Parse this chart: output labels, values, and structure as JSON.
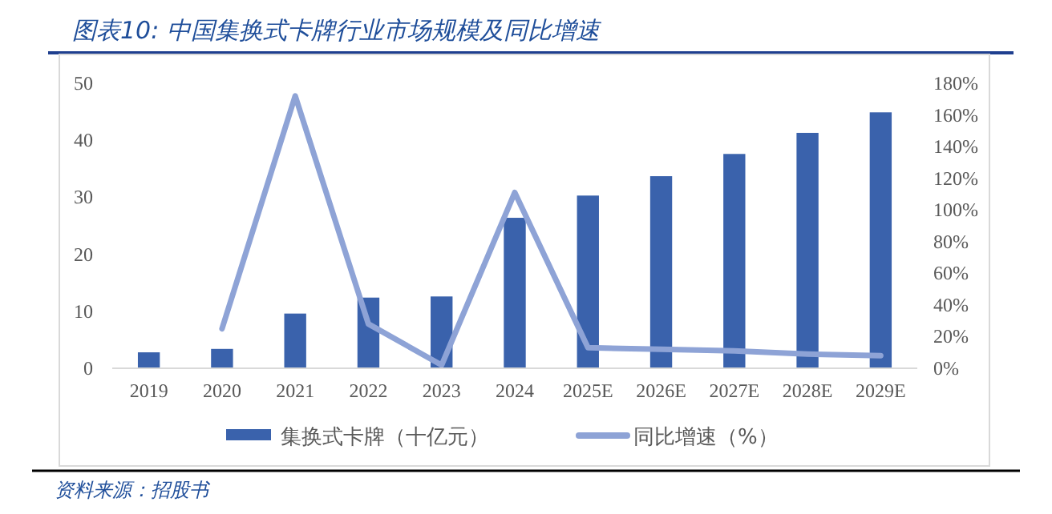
{
  "chart_data": {
    "type": "bar",
    "title": "图表10: 中国集换式卡牌行业市场规模及同比增速",
    "categories": [
      "2019",
      "2020",
      "2021",
      "2022",
      "2023",
      "2024",
      "2025E",
      "2026E",
      "2027E",
      "2028E",
      "2029E"
    ],
    "series": [
      {
        "name": "集换式卡牌（十亿元）",
        "color": "#3a62ac",
        "values": [
          2.8,
          3.4,
          9.6,
          12.4,
          12.6,
          26.4,
          30.3,
          33.7,
          37.6,
          41.3,
          44.9
        ]
      },
      {
        "name": "同比增速（%）",
        "type": "line",
        "axis": "y2",
        "color": "#8ea3d6",
        "values": [
          null,
          25,
          172,
          28,
          2,
          111,
          13,
          12,
          11,
          9,
          8
        ]
      }
    ],
    "ylim": [
      0,
      50
    ],
    "yticks": [
      0,
      10,
      20,
      30,
      40,
      50
    ],
    "y2lim": [
      0,
      180
    ],
    "y2ticks": [
      {
        "value": 0,
        "label": "0%"
      },
      {
        "value": 20,
        "label": "20%"
      },
      {
        "value": 40,
        "label": "40%"
      },
      {
        "value": 60,
        "label": "60%"
      },
      {
        "value": 80,
        "label": "80%"
      },
      {
        "value": 100,
        "label": "100%"
      },
      {
        "value": 120,
        "label": "120%"
      },
      {
        "value": 140,
        "label": "140%"
      },
      {
        "value": 160,
        "label": "160%"
      },
      {
        "value": 180,
        "label": "180%"
      }
    ],
    "grid": false,
    "legend": "bottom",
    "marker": "none",
    "line_style": "solid",
    "annotations": [
      "资料来源：招股书"
    ]
  }
}
